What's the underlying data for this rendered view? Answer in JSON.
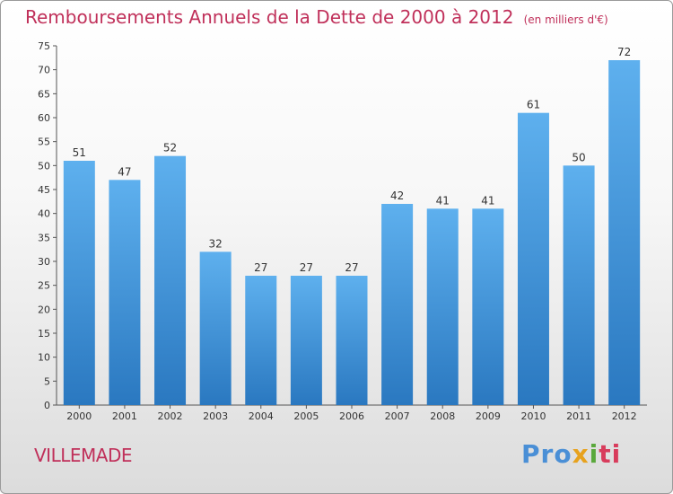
{
  "title": "Remboursements Annuels de la Dette de 2000 à 2012",
  "unit_note": "(en milliers d'€)",
  "place": "VILLEMADE",
  "logo": {
    "parts": [
      "Pro",
      "x",
      "i",
      "ti"
    ],
    "colors": [
      "#4a8fd6",
      "#e7a21e",
      "#5aa83c",
      "#d83c5c"
    ]
  },
  "colors": {
    "bar_top": "#5eb0ee",
    "bar_bottom": "#2a78c0",
    "title": "#c0305a"
  },
  "chart_data": {
    "type": "bar",
    "title": "Remboursements Annuels de la Dette de 2000 à 2012",
    "xlabel": "",
    "ylabel": "",
    "categories": [
      "2000",
      "2001",
      "2002",
      "2003",
      "2004",
      "2005",
      "2006",
      "2007",
      "2008",
      "2009",
      "2010",
      "2011",
      "2012"
    ],
    "values": [
      51,
      47,
      52,
      32,
      27,
      27,
      27,
      42,
      41,
      41,
      61,
      50,
      72
    ],
    "ylim": [
      0,
      75
    ],
    "yticks": [
      0,
      5,
      10,
      15,
      20,
      25,
      30,
      35,
      40,
      45,
      50,
      55,
      60,
      65,
      70,
      75
    ],
    "grid": false,
    "legend": "none"
  }
}
